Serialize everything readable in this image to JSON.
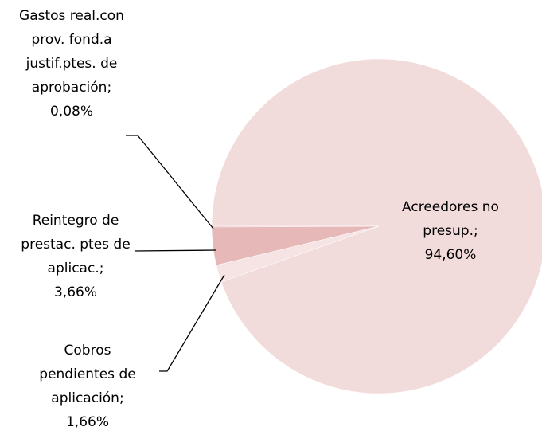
{
  "chart_data": {
    "type": "pie",
    "categories": [
      "Acreedores no presup.",
      "Gastos real.con prov. fond.a justif.ptes. de aprobación",
      "Reintegro de prestac. ptes de aplicac.",
      "Cobros pendientes de aplicación"
    ],
    "values": [
      94.6,
      0.08,
      3.66,
      1.66
    ],
    "value_labels": [
      "94,60%",
      "0,08%",
      "3,66%",
      "1,66%"
    ],
    "label_separator": ";",
    "colors": [
      "#f2dcdb",
      "#d99694",
      "#e6b9b8",
      "#f5e4e3"
    ]
  }
}
